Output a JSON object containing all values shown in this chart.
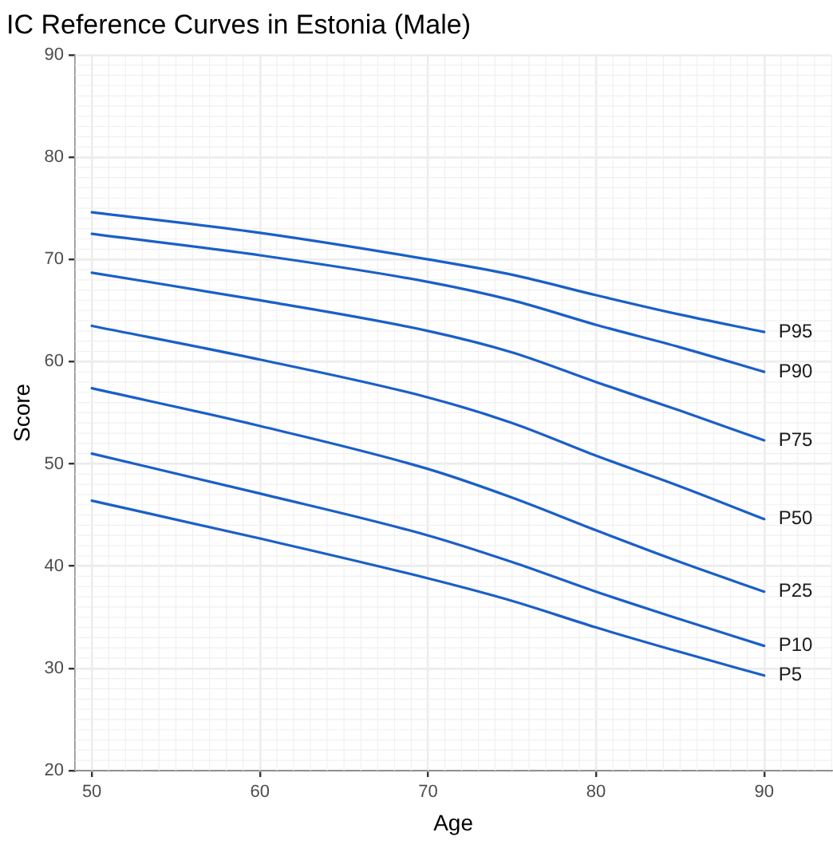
{
  "chart_data": {
    "type": "line",
    "title": "IC Reference Curves in Estonia (Male)",
    "xlabel": "Age",
    "ylabel": "Score",
    "x": [
      50,
      60,
      70,
      75,
      80,
      85,
      90
    ],
    "series": [
      {
        "name": "P95",
        "color": "#1a5fc8",
        "values": [
          74.6,
          72.6,
          70.0,
          68.5,
          66.5,
          64.6,
          62.9
        ]
      },
      {
        "name": "P90",
        "color": "#1a5fc8",
        "values": [
          72.5,
          70.4,
          67.8,
          66.0,
          63.6,
          61.4,
          59.0
        ]
      },
      {
        "name": "P75",
        "color": "#1a5fc8",
        "values": [
          68.7,
          66.0,
          63.0,
          60.9,
          58.0,
          55.2,
          52.3
        ]
      },
      {
        "name": "P50",
        "color": "#1a5fc8",
        "values": [
          63.5,
          60.2,
          56.5,
          54.0,
          50.8,
          47.8,
          44.6
        ]
      },
      {
        "name": "P25",
        "color": "#1a5fc8",
        "values": [
          57.4,
          53.7,
          49.5,
          46.7,
          43.5,
          40.4,
          37.5
        ]
      },
      {
        "name": "P10",
        "color": "#1a5fc8",
        "values": [
          51.0,
          47.1,
          43.0,
          40.4,
          37.5,
          34.8,
          32.2
        ]
      },
      {
        "name": "P5",
        "color": "#1a5fc8",
        "values": [
          46.4,
          42.7,
          38.8,
          36.6,
          34.0,
          31.6,
          29.3
        ]
      }
    ],
    "xlim": [
      49,
      94
    ],
    "xticks": [
      50,
      60,
      70,
      80,
      90
    ],
    "ylim": [
      20,
      90
    ],
    "yticks": [
      20,
      30,
      40,
      50,
      60,
      70,
      80,
      90
    ],
    "grid": true,
    "legend": false,
    "marker": "none",
    "line_style": "solid"
  }
}
